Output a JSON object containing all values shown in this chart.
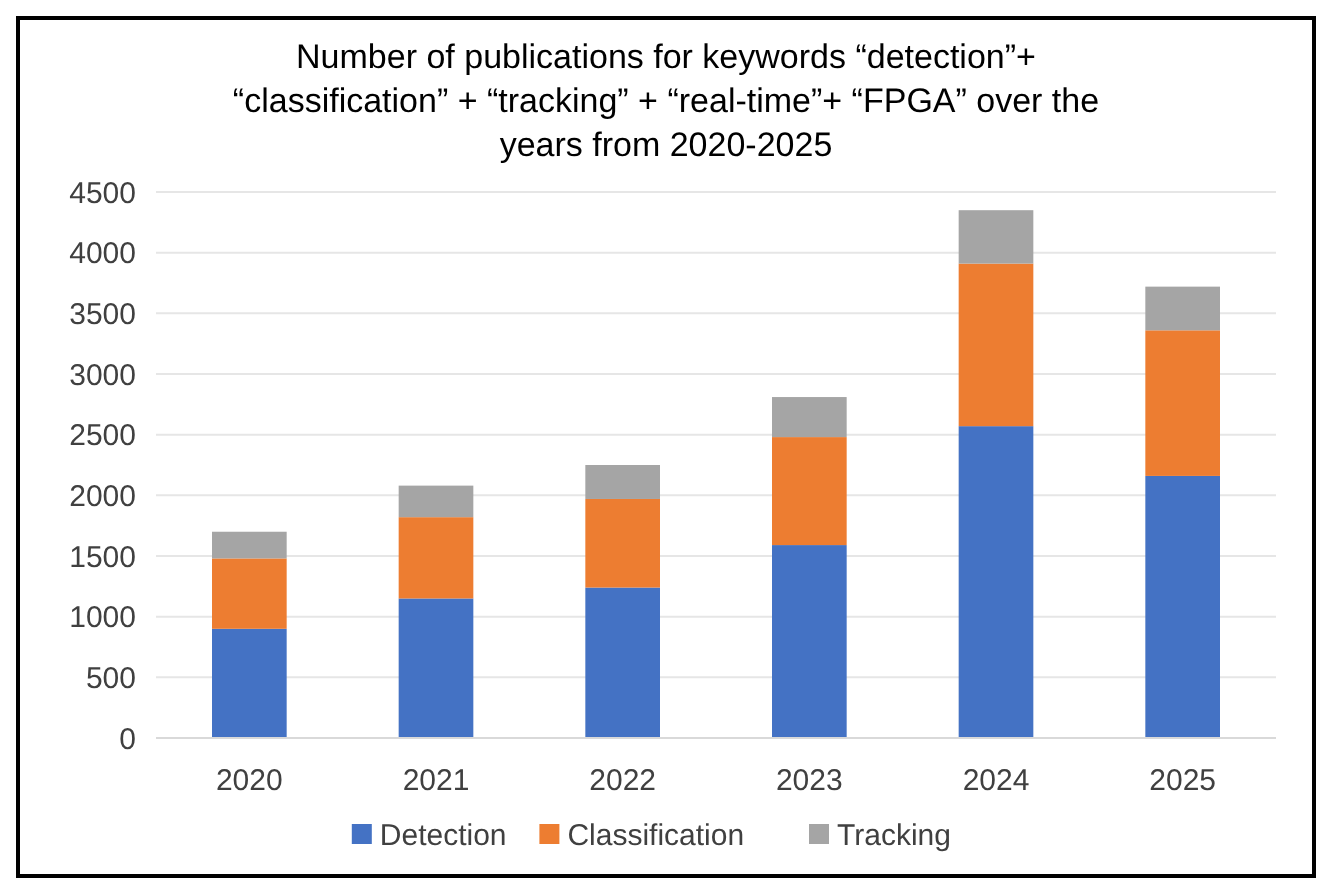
{
  "chart_data": {
    "type": "bar",
    "title": "Number of publications for keywords “detection”+ “classification” + “tracking” + “real-time”+ “FPGA” over the years from 2020-2025",
    "categories": [
      "2020",
      "2021",
      "2022",
      "2023",
      "2024",
      "2025"
    ],
    "series": [
      {
        "name": "Detection",
        "color": "#4472c4",
        "values": [
          900,
          1150,
          1240,
          1590,
          2570,
          2160
        ]
      },
      {
        "name": "Classification",
        "color": "#ed7d31",
        "values": [
          580,
          670,
          730,
          890,
          1340,
          1200
        ]
      },
      {
        "name": "Tracking",
        "color": "#a5a5a5",
        "values": [
          220,
          260,
          280,
          330,
          440,
          360
        ]
      }
    ],
    "stacked": true,
    "ylim": [
      0,
      4500
    ],
    "yticks": [
      0,
      500,
      1000,
      1500,
      2000,
      2500,
      3000,
      3500,
      4000,
      4500
    ],
    "grid": "y",
    "legend": "bottom"
  }
}
